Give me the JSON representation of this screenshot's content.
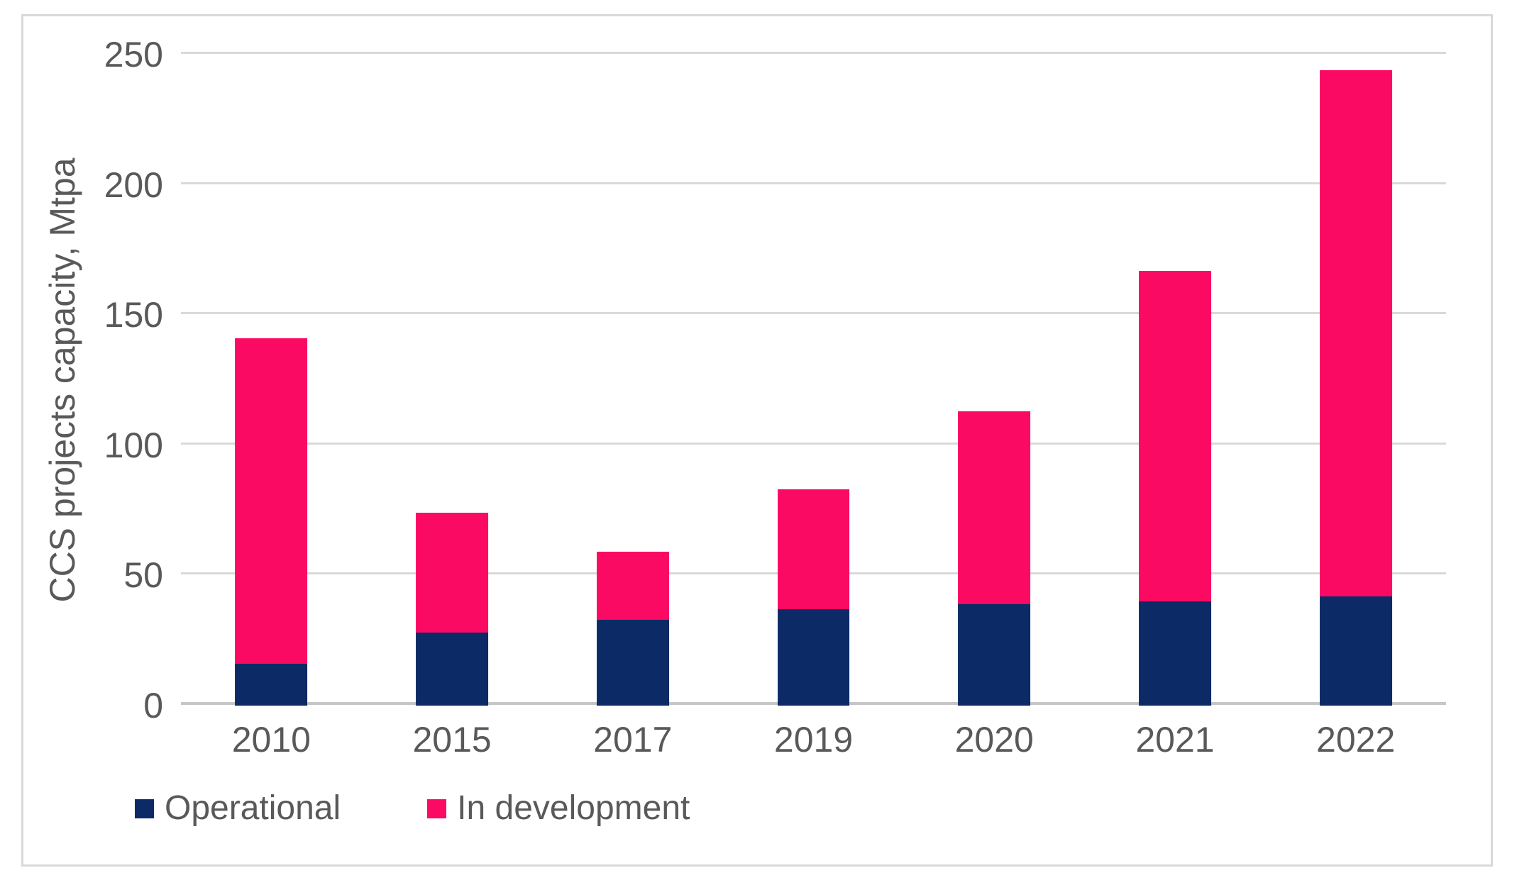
{
  "chart_data": {
    "type": "bar",
    "stacked": true,
    "title": "",
    "xlabel": "",
    "ylabel": "CCS projects capacity, Mtpa",
    "categories": [
      "2010",
      "2015",
      "2017",
      "2019",
      "2020",
      "2021",
      "2022"
    ],
    "series": [
      {
        "name": "Operational",
        "color": "#0b2a66",
        "values": [
          16,
          28,
          33,
          37,
          39,
          40,
          42
        ]
      },
      {
        "name": "In development",
        "color": "#fb0a64",
        "values": [
          125,
          46,
          26,
          46,
          74,
          127,
          202
        ]
      }
    ],
    "totals": [
      141,
      74,
      59,
      83,
      113,
      167,
      244
    ],
    "ylim": [
      0,
      250
    ],
    "yticks": [
      0,
      50,
      100,
      150,
      200,
      250
    ],
    "grid": "horizontal",
    "legend_position": "bottom-left"
  },
  "colors": {
    "gridline": "#d9d9d9",
    "axis_baseline": "#c6c6c6",
    "tick_text": "#595959",
    "frame_border": "#d9d9d9",
    "background": "#ffffff"
  }
}
